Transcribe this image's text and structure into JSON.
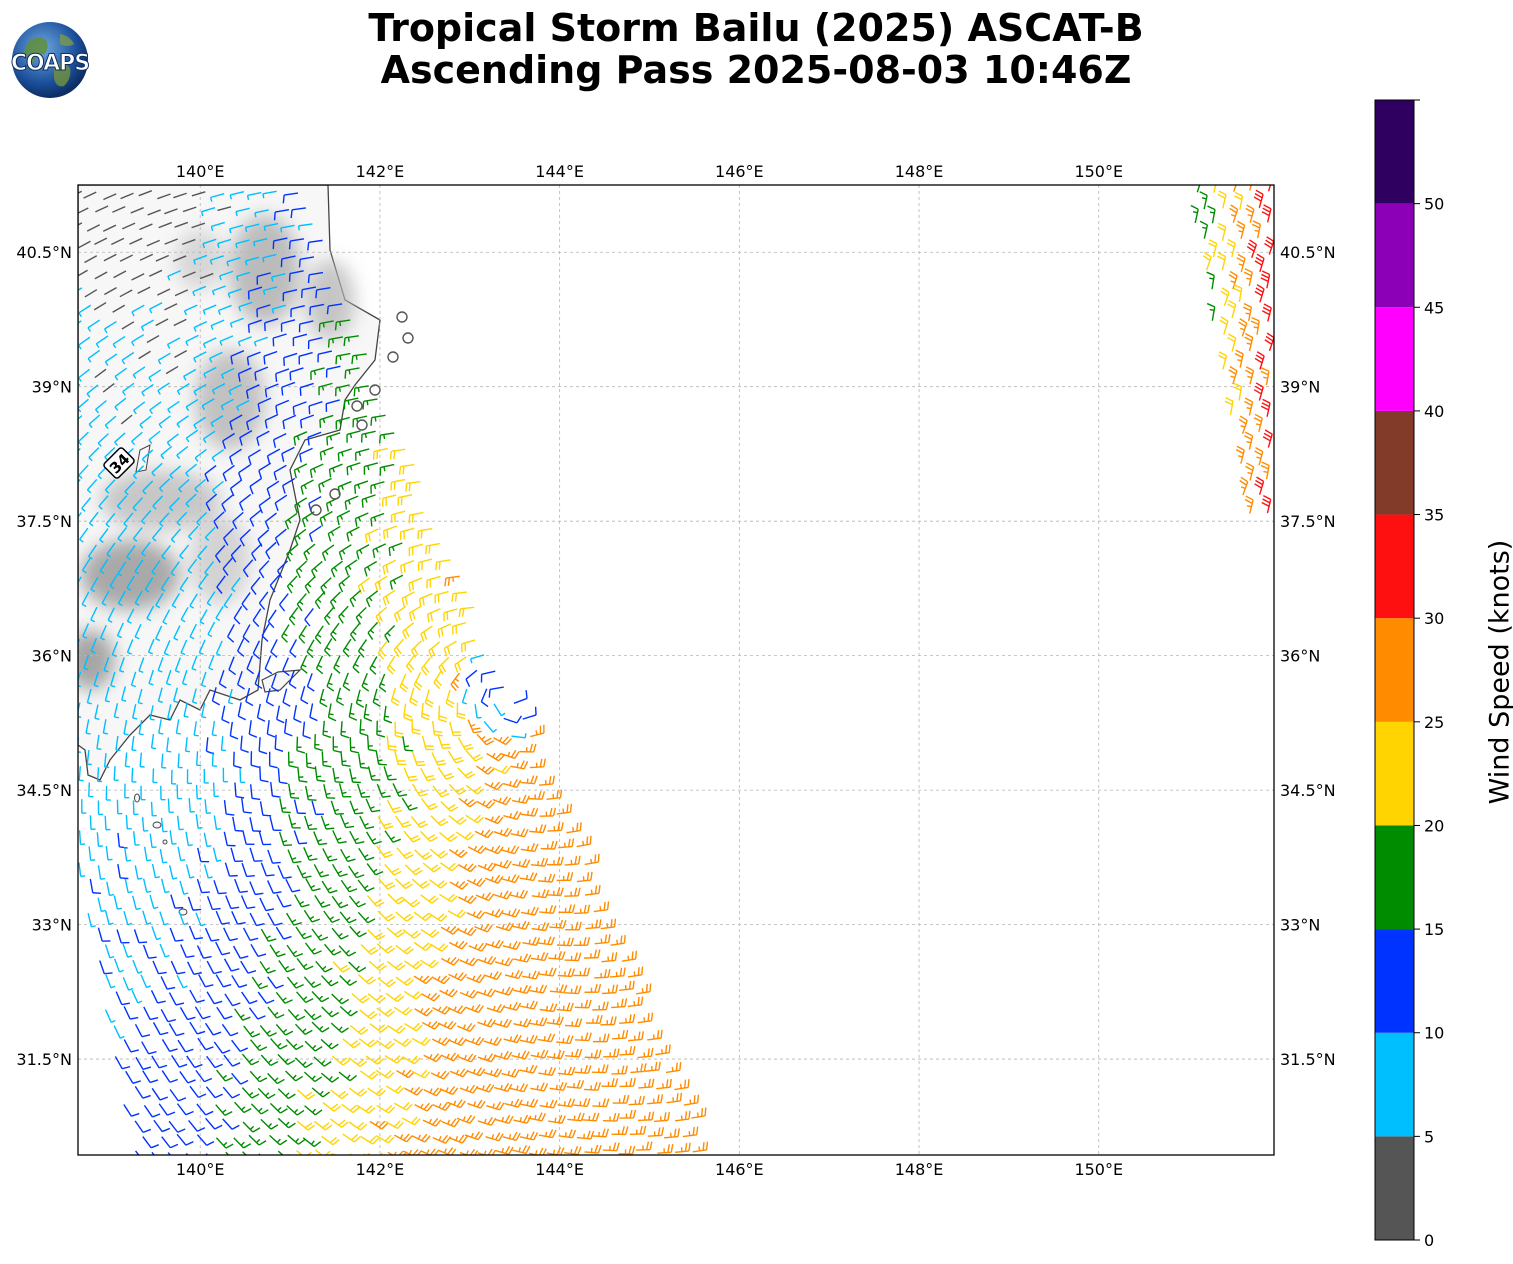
{
  "title_line1": "Tropical Storm Bailu (2025) ASCAT-B",
  "title_line2": "Ascending Pass 2025-08-03 10:46Z",
  "logo": {
    "text": "COAPS",
    "icon": "globe-logo-icon"
  },
  "map": {
    "lon_labels": [
      "140°E",
      "142°E",
      "144°E",
      "146°E",
      "148°E",
      "150°E"
    ],
    "lon_values": [
      140,
      142,
      144,
      146,
      148,
      150
    ],
    "lat_labels": [
      "40.5°N",
      "39°N",
      "37.5°N",
      "36°N",
      "34.5°N",
      "33°N",
      "31.5°N"
    ],
    "lat_values": [
      40.5,
      39,
      37.5,
      36,
      34.5,
      33,
      31.5
    ],
    "lon_range": [
      138.64,
      151.95
    ],
    "lat_range": [
      30.43,
      41.25
    ],
    "grid": "dashed",
    "annotation": "34",
    "land_shading": "grayscale terrain"
  },
  "colorbar": {
    "label": "Wind Speed (knots)",
    "ticks": [
      "0",
      "5",
      "10",
      "15",
      "20",
      "25",
      "30",
      "35",
      "40",
      "45",
      "50"
    ],
    "bins": [
      {
        "min": 0,
        "max": 5,
        "color": "#555555"
      },
      {
        "min": 5,
        "max": 10,
        "color": "#00bfff"
      },
      {
        "min": 10,
        "max": 15,
        "color": "#0033ff"
      },
      {
        "min": 15,
        "max": 20,
        "color": "#008c00"
      },
      {
        "min": 20,
        "max": 25,
        "color": "#ffd400"
      },
      {
        "min": 25,
        "max": 30,
        "color": "#ff8c00"
      },
      {
        "min": 30,
        "max": 35,
        "color": "#ff1010"
      },
      {
        "min": 35,
        "max": 40,
        "color": "#823b28"
      },
      {
        "min": 40,
        "max": 45,
        "color": "#ff00ff"
      },
      {
        "min": 45,
        "max": 50,
        "color": "#8c00b8"
      },
      {
        "min": 50,
        "max": 55,
        "color": "#2f0060"
      }
    ]
  },
  "storm_center": {
    "lon": 143.4,
    "lat": 35.6
  }
}
